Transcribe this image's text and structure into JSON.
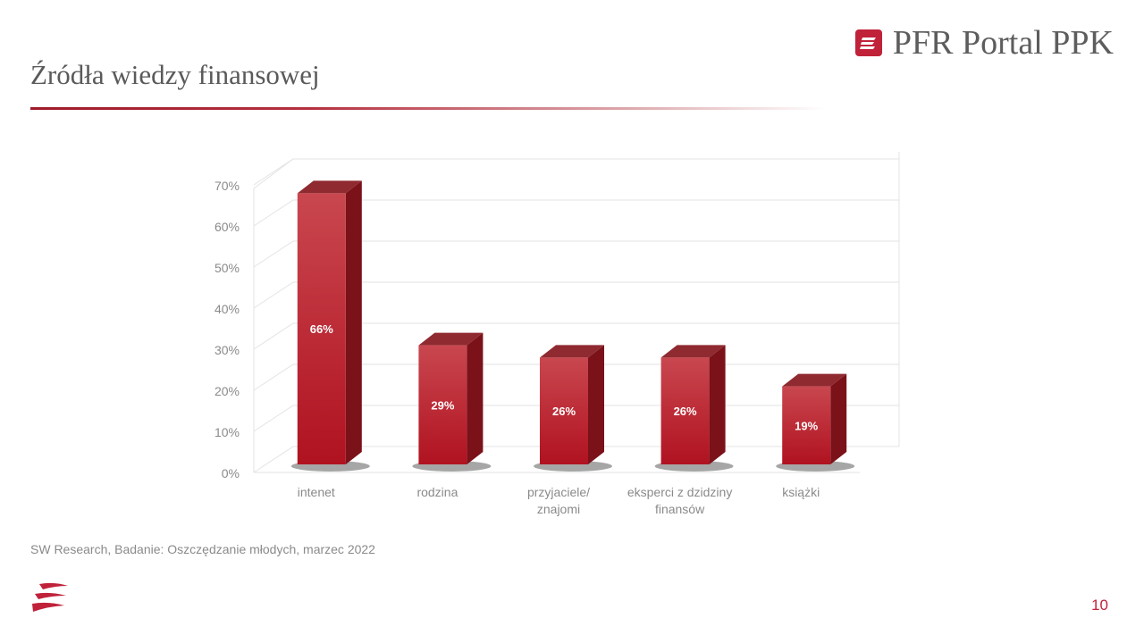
{
  "slide": {
    "title": "Źródła wiedzy finansowej",
    "brand": "PFR Portal PPK",
    "source": "SW Research, Badanie: Oszczędzanie młodych, marzec 2022",
    "page_number": "10"
  },
  "colors": {
    "bar_front_top": "#c9474f",
    "bar_front_bottom": "#b01220",
    "bar_side": "#7b1119",
    "bar_top": "#8f2a30",
    "accent": "#c0223a",
    "grid": "#e3e3e3"
  },
  "chart_data": {
    "type": "bar",
    "title": "",
    "xlabel": "",
    "ylabel": "",
    "categories": [
      [
        "intenet"
      ],
      [
        "rodzina"
      ],
      [
        "przyjaciele/",
        "znajomi"
      ],
      [
        "eksperci z dzidziny",
        "finansów"
      ],
      [
        "książki"
      ]
    ],
    "values": [
      66,
      29,
      26,
      26,
      19
    ],
    "data_labels": [
      "66%",
      "29%",
      "26%",
      "26%",
      "19%"
    ],
    "y_ticks": [
      "0%",
      "10%",
      "20%",
      "30%",
      "40%",
      "50%",
      "60%",
      "70%"
    ],
    "ylim": [
      0,
      70
    ],
    "grid": true,
    "legend": "none",
    "style": "3d-column"
  }
}
